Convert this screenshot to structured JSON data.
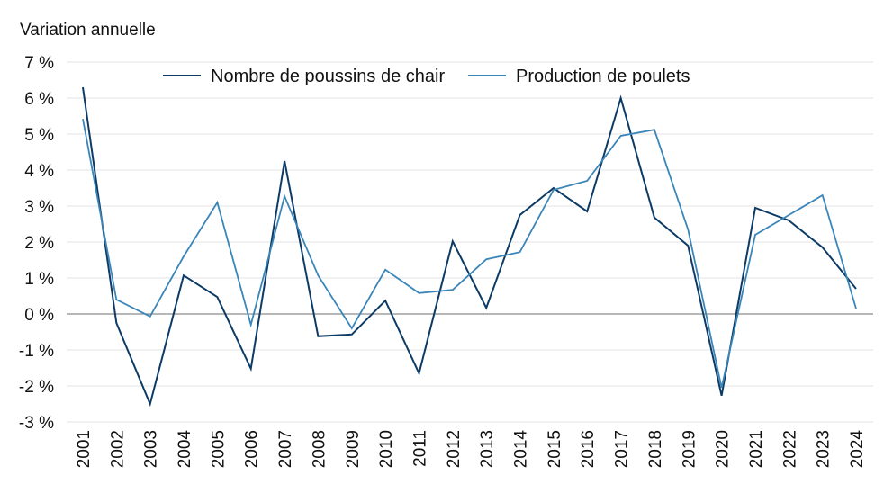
{
  "chart_data": {
    "type": "line",
    "title": "",
    "ylabel": "Variation annuelle",
    "xlabel": "",
    "categories": [
      "2001",
      "2002",
      "2003",
      "2004",
      "2005",
      "2006",
      "2007",
      "2008",
      "2009",
      "2010",
      "2011",
      "2012",
      "2013",
      "2014",
      "2015",
      "2016",
      "2017",
      "2018",
      "2019",
      "2020",
      "2021",
      "2022",
      "2023",
      "2024"
    ],
    "ylim": [
      -3,
      7
    ],
    "yticks": [
      -3,
      -2,
      -1,
      0,
      1,
      2,
      3,
      4,
      5,
      6,
      7
    ],
    "ytick_labels": [
      "-3 %",
      "-2 %",
      "-1 %",
      "0 %",
      "1 %",
      "2 %",
      "3 %",
      "4 %",
      "5 %",
      "6 %",
      "7 %"
    ],
    "grid": true,
    "legend_position": "top",
    "series": [
      {
        "name": "Nombre de poussins de chair",
        "color": "#0d3b66",
        "values": [
          6.3,
          -0.25,
          -2.5,
          1.07,
          0.47,
          -1.52,
          4.25,
          -0.62,
          -0.57,
          0.37,
          -1.65,
          2.02,
          0.17,
          2.75,
          3.5,
          2.85,
          6.0,
          2.68,
          1.9,
          -2.27,
          2.95,
          2.6,
          1.85,
          0.7
        ]
      },
      {
        "name": "Production de poulets",
        "color": "#3a86b8",
        "values": [
          5.42,
          0.4,
          -0.07,
          1.6,
          3.1,
          -0.3,
          3.27,
          1.07,
          -0.4,
          1.23,
          0.58,
          0.67,
          1.52,
          1.72,
          3.45,
          3.7,
          4.95,
          5.12,
          2.35,
          -2.05,
          2.2,
          2.75,
          3.3,
          0.15
        ]
      }
    ]
  }
}
